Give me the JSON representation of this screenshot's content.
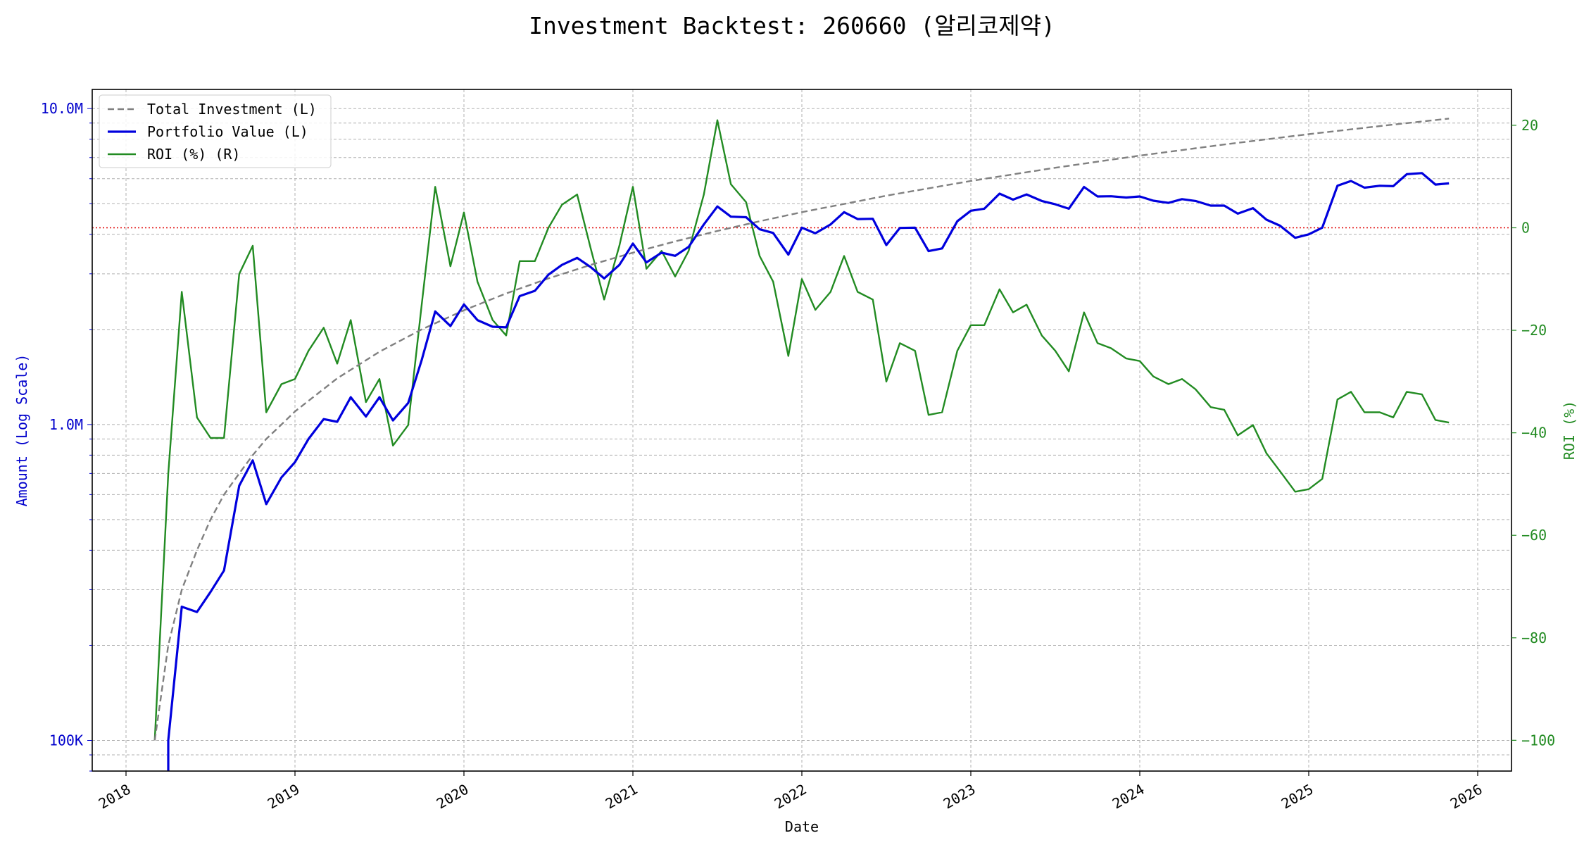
{
  "chart_data": {
    "type": "line",
    "title": "Investment Backtest: 260660 (알리코제약)",
    "xlabel": "Date",
    "ylabel_left": "Amount (Log Scale)",
    "ylabel_right": "ROI (%)",
    "x_ticks": [
      "2018",
      "2019",
      "2020",
      "2021",
      "2022",
      "2023",
      "2024",
      "2025",
      "2026"
    ],
    "y_left_scale": "log",
    "y_left_ticks": [
      {
        "value": 100000,
        "label": "100K"
      },
      {
        "value": 1000000,
        "label": "1.0M"
      },
      {
        "value": 10000000,
        "label": "10.0M"
      }
    ],
    "y_left_range": [
      80000,
      11500000
    ],
    "y_right_ticks": [
      -100,
      -80,
      -60,
      -40,
      -20,
      0,
      20
    ],
    "y_right_range": [
      -106,
      27
    ],
    "x_range": [
      2017.8,
      2026.2
    ],
    "grid": true,
    "legend_position": "upper-left",
    "zero_line": {
      "axis": "right",
      "value": 0,
      "color": "#e00000",
      "style": "dotted"
    },
    "series": [
      {
        "name": "Total Investment (L)",
        "axis": "left",
        "color": "#808080",
        "style": "dashed",
        "x": [
          2018.17,
          2018.25,
          2018.33,
          2018.42,
          2018.5,
          2018.58,
          2018.67,
          2018.75,
          2018.83,
          2018.92,
          2019.0,
          2019.25,
          2019.5,
          2019.75,
          2020.0,
          2020.25,
          2020.5,
          2020.75,
          2021.0,
          2021.25,
          2021.5,
          2021.75,
          2022.0,
          2022.5,
          2023.0,
          2023.5,
          2024.0,
          2024.5,
          2025.0,
          2025.5,
          2025.83
        ],
        "values": [
          100000,
          200000,
          300000,
          400000,
          500000,
          600000,
          700000,
          800000,
          900000,
          1000000,
          1100000,
          1400000,
          1700000,
          2000000,
          2300000,
          2600000,
          2900000,
          3200000,
          3500000,
          3800000,
          4100000,
          4400000,
          4700000,
          5300000,
          5900000,
          6500000,
          7100000,
          7700000,
          8300000,
          8900000,
          9300000
        ]
      },
      {
        "name": "Portfolio Value (L)",
        "axis": "left",
        "color": "#0000dd",
        "style": "solid",
        "x": [
          2018.25,
          2018.25,
          2018.33,
          2018.42,
          2018.5,
          2018.58,
          2018.67,
          2018.75,
          2018.83,
          2018.92,
          2019.0,
          2019.08,
          2019.17,
          2019.25,
          2019.33,
          2019.42,
          2019.5,
          2019.58,
          2019.67,
          2019.75,
          2019.83,
          2019.92,
          2020.0,
          2020.08,
          2020.17,
          2020.25,
          2020.33,
          2020.42,
          2020.5,
          2020.58,
          2020.67,
          2020.75,
          2020.83,
          2020.92,
          2021.0,
          2021.08,
          2021.17,
          2021.25,
          2021.33,
          2021.42,
          2021.5,
          2021.58,
          2021.67,
          2021.75,
          2021.83,
          2021.92,
          2022.0,
          2022.08,
          2022.17,
          2022.25,
          2022.33,
          2022.42,
          2022.5,
          2022.58,
          2022.67,
          2022.75,
          2022.83,
          2022.92,
          2023.0,
          2023.08,
          2023.17,
          2023.25,
          2023.33,
          2023.42,
          2023.5,
          2023.58,
          2023.67,
          2023.75,
          2023.83,
          2023.92,
          2024.0,
          2024.08,
          2024.17,
          2024.25,
          2024.33,
          2024.42,
          2024.5,
          2024.58,
          2024.67,
          2024.75,
          2024.83,
          2024.92,
          2025.0,
          2025.08,
          2025.17,
          2025.25,
          2025.33,
          2025.42,
          2025.5,
          2025.58,
          2025.67,
          2025.75,
          2025.83
        ],
        "values": [
          80000,
          100000,
          265000,
          255000,
          295000,
          345000,
          640000,
          770000,
          560000,
          680000,
          760000,
          900000,
          1040000,
          1020000,
          1220000,
          1060000,
          1220000,
          1030000,
          1170000,
          1600000,
          2280000,
          2050000,
          2400000,
          2140000,
          2040000,
          2030000,
          2550000,
          2650000,
          2980000,
          3200000,
          3370000,
          3150000,
          2900000,
          3200000,
          3740000,
          3260000,
          3500000,
          3420000,
          3650000,
          4300000,
          4900000,
          4550000,
          4530000,
          4150000,
          4040000,
          3450000,
          4200000,
          4030000,
          4300000,
          4700000,
          4470000,
          4480000,
          3700000,
          4190000,
          4200000,
          3540000,
          3610000,
          4400000,
          4750000,
          4820000,
          5380000,
          5150000,
          5350000,
          5100000,
          4980000,
          4820000,
          5650000,
          5270000,
          5280000,
          5230000,
          5270000,
          5110000,
          5030000,
          5170000,
          5100000,
          4930000,
          4930000,
          4650000,
          4840000,
          4450000,
          4260000,
          3900000,
          4000000,
          4200000,
          5700000,
          5900000,
          5620000,
          5700000,
          5680000,
          6200000,
          6250000,
          5750000,
          5800000
        ]
      },
      {
        "name": "ROI (%) (R)",
        "axis": "right",
        "color": "#228b22",
        "style": "solid",
        "x": [
          2018.17,
          2018.25,
          2018.33,
          2018.42,
          2018.5,
          2018.58,
          2018.67,
          2018.75,
          2018.83,
          2018.92,
          2019.0,
          2019.08,
          2019.17,
          2019.25,
          2019.33,
          2019.42,
          2019.5,
          2019.58,
          2019.67,
          2019.75,
          2019.83,
          2019.92,
          2020.0,
          2020.08,
          2020.17,
          2020.25,
          2020.33,
          2020.42,
          2020.5,
          2020.58,
          2020.67,
          2020.75,
          2020.83,
          2020.92,
          2021.0,
          2021.08,
          2021.17,
          2021.25,
          2021.33,
          2021.42,
          2021.5,
          2021.58,
          2021.67,
          2021.75,
          2021.83,
          2021.92,
          2022.0,
          2022.08,
          2022.17,
          2022.25,
          2022.33,
          2022.42,
          2022.5,
          2022.58,
          2022.67,
          2022.75,
          2022.83,
          2022.92,
          2023.0,
          2023.08,
          2023.17,
          2023.25,
          2023.33,
          2023.42,
          2023.5,
          2023.58,
          2023.67,
          2023.75,
          2023.83,
          2023.92,
          2024.0,
          2024.08,
          2024.17,
          2024.25,
          2024.33,
          2024.42,
          2024.5,
          2024.58,
          2024.67,
          2024.75,
          2024.83,
          2024.92,
          2025.0,
          2025.08,
          2025.17,
          2025.25,
          2025.33,
          2025.42,
          2025.5,
          2025.58,
          2025.67,
          2025.75,
          2025.83
        ],
        "values": [
          -100,
          -48,
          -12.5,
          -37,
          -41,
          -41,
          -9,
          -3.5,
          -36,
          -30.5,
          -29.5,
          -24,
          -19.5,
          -26.5,
          -18,
          -34,
          -29.5,
          -42.5,
          -38.5,
          -15,
          8,
          -7.5,
          3,
          -10.5,
          -18,
          -21,
          -6.5,
          -6.5,
          0,
          4.5,
          6.5,
          -4,
          -14,
          -3.5,
          8,
          -8,
          -4.5,
          -9.5,
          -4.5,
          6.5,
          21,
          8.5,
          5,
          -5.5,
          -10.5,
          -25,
          -10,
          -16,
          -12.5,
          -5.5,
          -12.5,
          -14,
          -30,
          -22.5,
          -24,
          -36.5,
          -36,
          -24,
          -19,
          -19,
          -12,
          -16.5,
          -15,
          -21,
          -24,
          -28,
          -16.5,
          -22.5,
          -23.5,
          -25.5,
          -26,
          -29,
          -30.5,
          -29.5,
          -31.5,
          -35,
          -35.5,
          -40.5,
          -38.5,
          -44,
          -47.5,
          -51.5,
          -51,
          -49,
          -33.5,
          -32,
          -36,
          -36,
          -37,
          -32,
          -32.5,
          -37.5,
          -38
        ]
      }
    ]
  }
}
